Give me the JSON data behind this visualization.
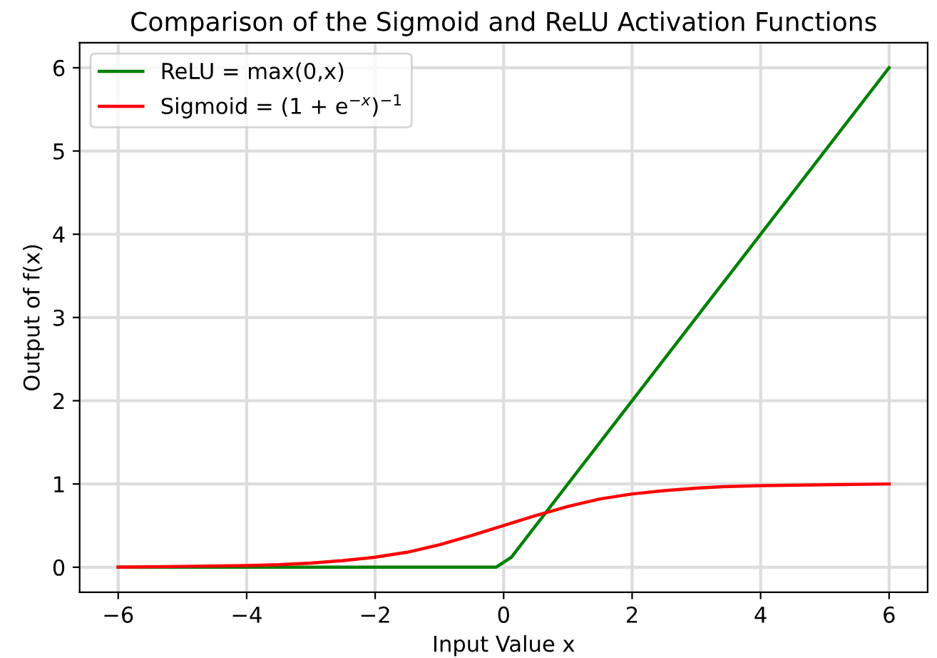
{
  "chart_data": {
    "type": "line",
    "title": "Comparison of the Sigmoid and ReLU Activation Functions",
    "xlabel": "Input Value x",
    "ylabel": "Output of f(x)",
    "series": [
      {
        "name": "ReLU = max(0,x)",
        "color": "#008000",
        "x": [
          -6,
          -0.12,
          0.12,
          6
        ],
        "values": [
          0,
          0,
          0.12,
          6
        ]
      },
      {
        "name": "Sigmoid = (1 + e$^{−x}$)$^{−1}$",
        "color": "#ff0000",
        "x": [
          -6,
          -5,
          -4,
          -3.5,
          -3,
          -2.5,
          -2,
          -1.5,
          -1,
          -0.5,
          0,
          0.5,
          1,
          1.5,
          2,
          2.5,
          3,
          3.5,
          4,
          5,
          6
        ],
        "values": [
          0,
          0.01,
          0.02,
          0.03,
          0.05,
          0.08,
          0.12,
          0.18,
          0.27,
          0.38,
          0.5,
          0.62,
          0.73,
          0.82,
          0.88,
          0.92,
          0.95,
          0.97,
          0.98,
          0.99,
          1.0
        ]
      }
    ],
    "xlim": [
      -6.6,
      6.6
    ],
    "ylim": [
      -0.3,
      6.3
    ],
    "xticks": [
      {
        "value": -6,
        "label": "−6"
      },
      {
        "value": -4,
        "label": "−4"
      },
      {
        "value": -2,
        "label": "−2"
      },
      0,
      2,
      4,
      6
    ],
    "yticks": [
      0,
      1,
      2,
      3,
      4,
      5,
      6
    ],
    "grid": true,
    "legend": "top left",
    "marker": "none",
    "line_style": "solid"
  }
}
